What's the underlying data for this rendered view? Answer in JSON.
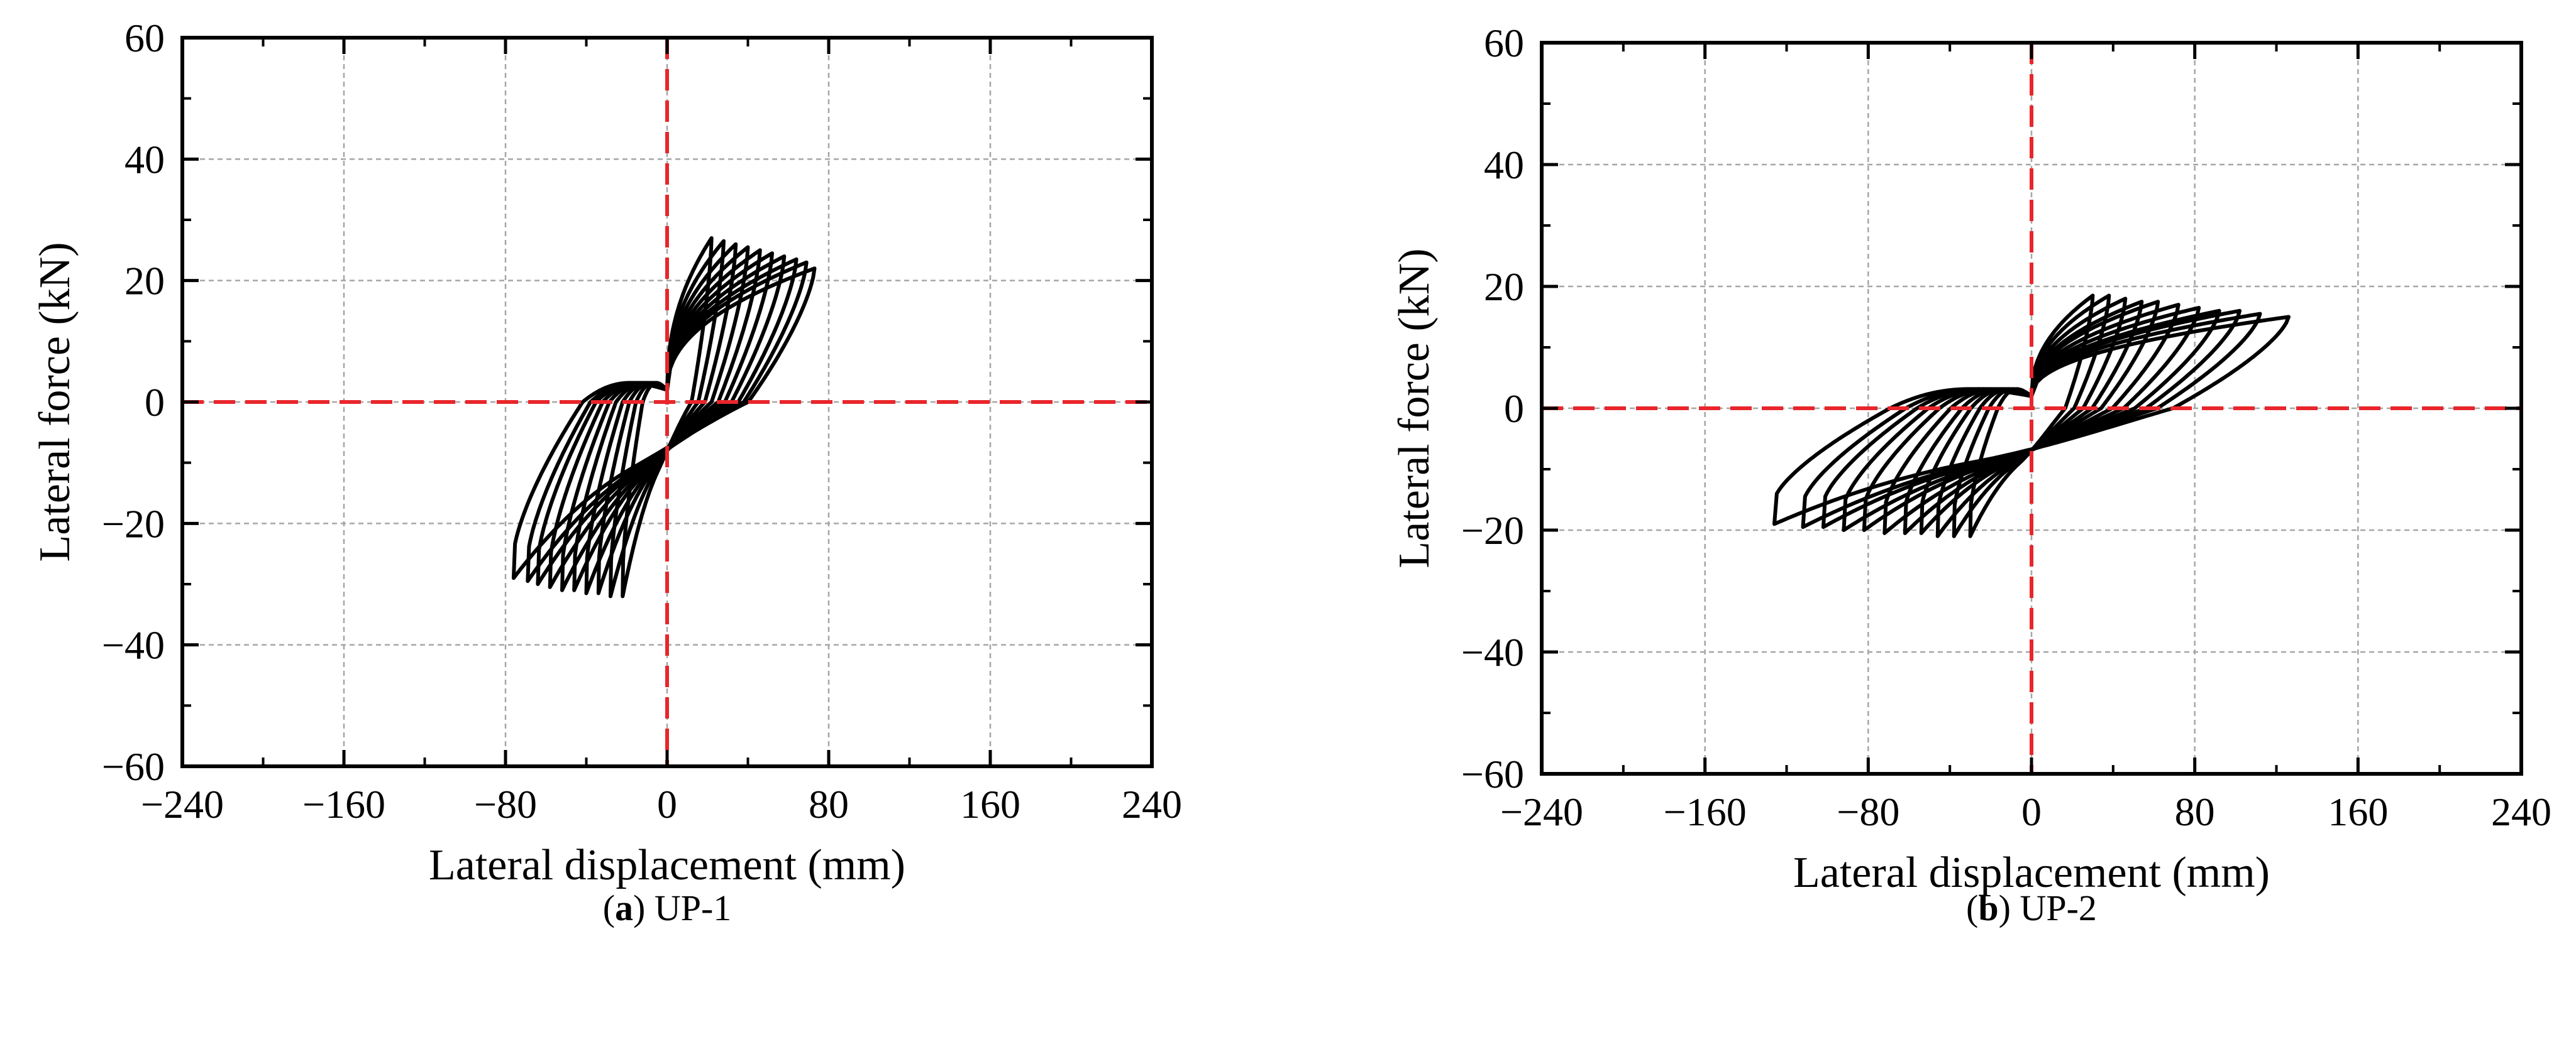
{
  "chart_data": [
    {
      "type": "line",
      "subtitle_letter": "a",
      "subtitle_name": "UP-1",
      "xlabel": "Lateral displacement (mm)",
      "ylabel": "Lateral force (kN)",
      "xlim": [
        -240,
        240
      ],
      "ylim": [
        -60,
        60
      ],
      "xticks": [
        -240,
        -160,
        -80,
        0,
        80,
        160,
        240
      ],
      "xtick_labels": [
        "−240",
        "−160",
        "−80",
        "0",
        "80",
        "160",
        "240"
      ],
      "yticks": [
        -60,
        -40,
        -20,
        0,
        20,
        40,
        60
      ],
      "ytick_labels": [
        "−60",
        "−40",
        "−20",
        "0",
        "20",
        "40",
        "60"
      ],
      "grid": true,
      "reference_line_color": "#e8262b",
      "curve_color": "#000000",
      "series": [
        {
          "name": "hysteresis loops",
          "loops": [
            {
              "d_pos": 22,
              "f_pos": 27,
              "d_neg": -22,
              "f_neg": -28
            },
            {
              "d_pos": 28,
              "f_pos": 26.5,
              "d_neg": -28,
              "f_neg": -28
            },
            {
              "d_pos": 34,
              "f_pos": 26,
              "d_neg": -34,
              "f_neg": -27.5
            },
            {
              "d_pos": 40,
              "f_pos": 25.5,
              "d_neg": -40,
              "f_neg": -27.5
            },
            {
              "d_pos": 46,
              "f_pos": 25,
              "d_neg": -46,
              "f_neg": -27
            },
            {
              "d_pos": 52,
              "f_pos": 24.5,
              "d_neg": -52,
              "f_neg": -27
            },
            {
              "d_pos": 58,
              "f_pos": 24,
              "d_neg": -58,
              "f_neg": -26.5
            },
            {
              "d_pos": 64,
              "f_pos": 23.5,
              "d_neg": -64,
              "f_neg": -26
            },
            {
              "d_pos": 69,
              "f_pos": 23,
              "d_neg": -69,
              "f_neg": -25.5
            },
            {
              "d_pos": 73,
              "f_pos": 22,
              "d_neg": -76,
              "f_neg": -25
            }
          ]
        }
      ]
    },
    {
      "type": "line",
      "subtitle_letter": "b",
      "subtitle_name": "UP-2",
      "xlabel": "Lateral displacement (mm)",
      "ylabel": "Lateral force (kN)",
      "xlim": [
        -240,
        240
      ],
      "ylim": [
        -60,
        60
      ],
      "xticks": [
        -240,
        -160,
        -80,
        0,
        80,
        160,
        240
      ],
      "xtick_labels": [
        "−240",
        "−160",
        "−80",
        "0",
        "80",
        "160",
        "240"
      ],
      "yticks": [
        -60,
        -40,
        -20,
        0,
        20,
        40,
        60
      ],
      "ytick_labels": [
        "−60",
        "−40",
        "−20",
        "0",
        "20",
        "40",
        "60"
      ],
      "grid": true,
      "reference_line_color": "#e8262b",
      "curve_color": "#000000",
      "series": [
        {
          "name": "hysteresis loops",
          "loops": [
            {
              "d_pos": 30,
              "f_pos": 18.5,
              "d_neg": -30,
              "f_neg": -17
            },
            {
              "d_pos": 38,
              "f_pos": 18.5,
              "d_neg": -38,
              "f_neg": -17
            },
            {
              "d_pos": 46,
              "f_pos": 18,
              "d_neg": -46,
              "f_neg": -17
            },
            {
              "d_pos": 54,
              "f_pos": 17.5,
              "d_neg": -54,
              "f_neg": -16.5
            },
            {
              "d_pos": 62,
              "f_pos": 17.5,
              "d_neg": -62,
              "f_neg": -16.5
            },
            {
              "d_pos": 72,
              "f_pos": 17,
              "d_neg": -72,
              "f_neg": -16.5
            },
            {
              "d_pos": 82,
              "f_pos": 16.5,
              "d_neg": -82,
              "f_neg": -16
            },
            {
              "d_pos": 92,
              "f_pos": 16,
              "d_neg": -92,
              "f_neg": -16
            },
            {
              "d_pos": 102,
              "f_pos": 16,
              "d_neg": -102,
              "f_neg": -15.5
            },
            {
              "d_pos": 112,
              "f_pos": 15.5,
              "d_neg": -112,
              "f_neg": -15.5
            },
            {
              "d_pos": 126,
              "f_pos": 15,
              "d_neg": -126,
              "f_neg": -15
            }
          ]
        }
      ]
    }
  ]
}
